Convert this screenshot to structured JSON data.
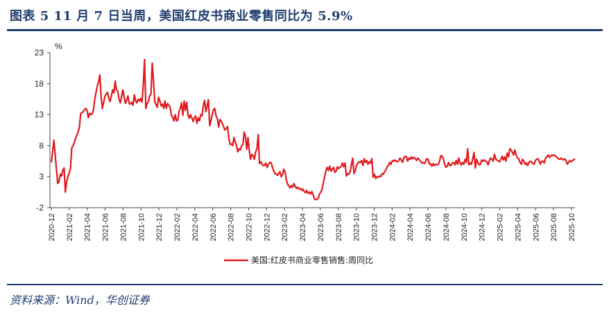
{
  "title": "图表 5   11 月 7 日当周，美国红皮书商业零售同比为 5.9%",
  "source": "资料来源：Wind，华创证券",
  "colors": {
    "accent": "#1f3c6e",
    "series": "#e0191d"
  },
  "chart_data": {
    "type": "line",
    "unit": "%",
    "ylim": [
      -2,
      23
    ],
    "yticks": [
      "23",
      "18",
      "13",
      "8",
      "3",
      "-2"
    ],
    "xticks": [
      "2020-12",
      "2021-02",
      "2021-04",
      "2021-06",
      "2021-08",
      "2021-10",
      "2021-12",
      "2022-02",
      "2022-04",
      "2022-06",
      "2022-08",
      "2022-10",
      "2022-12",
      "2023-02",
      "2023-04",
      "2023-06",
      "2023-08",
      "2023-10",
      "2023-12",
      "2024-02",
      "2024-04",
      "2024-06",
      "2024-08",
      "2024-10",
      "2024-12",
      "2025-02",
      "2025-04",
      "2025-06",
      "2025-08",
      "2025-10"
    ],
    "legend": "美国:红皮书商业零售销售:周同比",
    "series": [
      {
        "name": "美国:红皮书商业零售销售:周同比",
        "values": [
          5.3,
          7.0,
          8.9,
          6.6,
          4.2,
          1.9,
          2.2,
          3.4,
          3.1,
          4.0,
          4.4,
          0.5,
          2.2,
          3.0,
          3.6,
          4.3,
          7.6,
          8.0,
          8.5,
          9.2,
          9.7,
          10.2,
          11.0,
          13.2,
          13.3,
          13.5,
          13.8,
          14.0,
          13.7,
          12.5,
          13.2,
          13.0,
          13.1,
          13.8,
          15.5,
          16.6,
          17.6,
          18.3,
          19.4,
          15.8,
          14.0,
          15.0,
          16.0,
          16.3,
          16.6,
          15.6,
          15.1,
          16.0,
          17.0,
          16.5,
          18.4,
          17.0,
          16.8,
          15.5,
          14.9,
          15.9,
          17.0,
          15.9,
          14.8,
          15.3,
          16.0,
          14.8,
          14.7,
          15.0,
          14.5,
          16.2,
          15.2,
          14.9,
          15.5,
          15.2,
          15.6,
          15.0,
          17.8,
          21.9,
          14.0,
          14.8,
          15.1,
          16.0,
          16.3,
          21.3,
          18.5,
          15.0,
          14.6,
          14.2,
          15.8,
          15.2,
          14.4,
          14.7,
          14.0,
          15.2,
          14.0,
          14.8,
          14.5,
          14.2,
          12.9,
          12.6,
          12.0,
          13.0,
          12.0,
          12.1,
          13.5,
          14.0,
          14.9,
          12.9,
          15.2,
          13.7,
          15.0,
          13.0,
          12.4,
          13.0,
          12.5,
          11.9,
          12.5,
          12.8,
          11.6,
          12.5,
          12.0,
          13.0,
          12.8,
          14.5,
          15.3,
          13.5,
          14.4,
          15.4,
          11.2,
          12.0,
          13.0,
          13.8,
          14.0,
          12.8,
          12.4,
          11.0,
          12.2,
          12.0,
          11.5,
          11.0,
          10.5,
          10.8,
          11.1,
          9.2,
          8.2,
          8.3,
          8.0,
          9.3,
          8.6,
          8.0,
          7.0,
          7.5,
          7.3,
          8.0,
          8.2,
          10.2,
          9.5,
          7.4,
          9.3,
          7.2,
          5.8,
          6.6,
          6.4,
          5.8,
          7.0,
          7.5,
          9.8,
          5.1,
          5.4,
          5.0,
          4.8,
          4.8,
          5.2,
          4.5,
          5.0,
          5.3,
          5.3,
          4.6,
          4.0,
          3.5,
          3.5,
          3.2,
          3.5,
          3.8,
          3.0,
          3.3,
          4.2,
          3.8,
          2.5,
          1.8,
          1.5,
          1.2,
          1.6,
          1.3,
          1.9,
          1.4,
          1.1,
          1.3,
          1.0,
          1.1,
          0.8,
          1.0,
          0.6,
          0.4,
          0.8,
          0.3,
          0.5,
          0.2,
          0.6,
          0.1,
          -0.6,
          -0.7,
          -0.6,
          -0.5,
          0.2,
          0.5,
          1.0,
          2.0,
          3.0,
          3.9,
          4.5,
          4.0,
          4.7,
          3.9,
          4.2,
          4.5,
          3.7,
          3.9,
          4.6,
          4.3,
          4.5,
          4.7,
          5.2,
          4.6,
          5.2,
          3.1,
          3.5,
          3.4,
          3.8,
          5.0,
          6.0,
          3.5,
          4.0,
          4.8,
          5.2,
          5.4,
          5.3,
          5.6,
          4.8,
          5.9,
          5.3,
          5.6,
          5.0,
          5.4,
          5.2,
          5.9,
          2.9,
          3.4,
          2.7,
          3.0,
          2.9,
          3.1,
          3.0,
          3.5,
          3.4,
          3.8,
          4.1,
          4.6,
          4.8,
          5.3,
          5.0,
          5.6,
          5.5,
          5.7,
          5.5,
          5.4,
          5.6,
          6.0,
          5.7,
          5.3,
          6.0,
          6.3,
          6.2,
          5.5,
          6.0,
          5.8,
          6.2,
          5.9,
          6.1,
          5.9,
          5.6,
          6.0,
          5.8,
          5.5,
          5.2,
          5.3,
          5.1,
          5.4,
          5.9,
          5.8,
          5.0,
          5.1,
          4.7,
          5.1,
          4.8,
          5.0,
          4.9,
          5.0,
          5.5,
          6.4,
          6.3,
          5.9,
          5.0,
          4.5,
          4.7,
          5.3,
          4.8,
          4.8,
          5.2,
          5.3,
          4.9,
          5.6,
          5.0,
          6.0,
          5.2,
          4.9,
          5.3,
          5.0,
          5.8,
          5.3,
          7.5,
          4.9,
          5.2,
          5.0,
          5.9,
          6.9,
          4.4,
          5.8,
          5.3,
          4.9,
          5.0,
          5.7,
          5.5,
          5.7,
          5.5,
          5.4,
          4.9,
          5.6,
          6.0,
          5.8,
          5.5,
          6.6,
          5.8,
          5.7,
          5.5,
          5.4,
          5.8,
          6.3,
          5.7,
          6.2,
          5.5,
          6.8,
          6.2,
          7.5,
          7.3,
          6.9,
          6.5,
          7.3,
          6.5,
          6.0,
          5.9,
          5.3,
          5.0,
          5.8,
          5.5,
          5.0,
          5.2,
          4.8,
          5.3,
          5.5,
          5.4,
          5.1,
          5.0,
          5.6,
          5.8,
          5.9,
          5.5,
          5.0,
          5.5,
          5.5,
          5.2,
          6.0,
          6.2,
          6.5,
          6.1,
          6.3,
          6.5,
          6.4,
          6.5,
          6.3,
          6.1,
          5.9,
          5.8,
          6.0,
          5.8,
          5.7,
          5.9,
          5.6,
          5.0,
          5.3,
          5.6,
          5.4,
          5.6,
          5.7,
          5.9
        ]
      }
    ]
  }
}
